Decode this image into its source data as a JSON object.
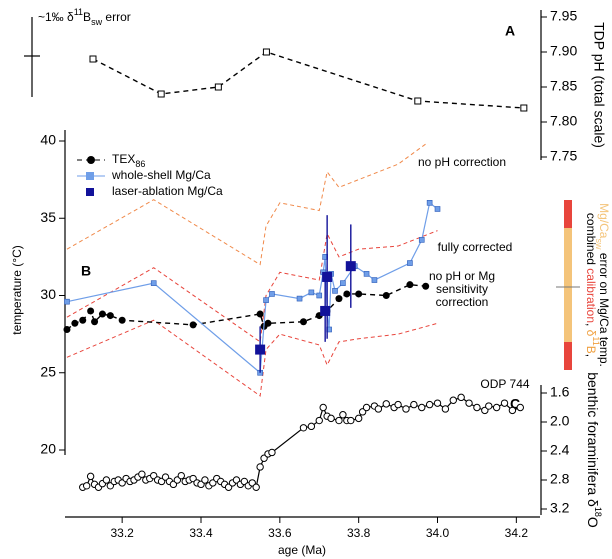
{
  "chart_data": [
    {
      "type": "line",
      "label": "A",
      "ylabel": "TDP pH (total scale)",
      "ylim": [
        7.75,
        7.95
      ],
      "yticks": [
        7.95,
        {
          "value": 7.9,
          "label": "7.90"
        },
        7.85,
        {
          "value": 7.8,
          "label": "7.80"
        },
        7.75
      ],
      "error_note": [
        {
          "text": "~1‰ δ"
        },
        {
          "sup": "11"
        },
        {
          "text": "B"
        },
        {
          "sub": "sw"
        },
        {
          "text": " error"
        }
      ],
      "series": [
        {
          "color": "#000000",
          "marker": "open-square",
          "dashed": true,
          "x": [
            33.126,
            33.299,
            33.444,
            33.566,
            33.95,
            34.219
          ],
          "values": [
            7.89,
            7.84,
            7.85,
            7.9,
            7.83,
            7.82
          ]
        }
      ]
    },
    {
      "type": "line",
      "label": "B",
      "ylabel": "temperature (°C)",
      "ylim": [
        20,
        40
      ],
      "yticks": [
        20,
        25,
        30,
        35,
        40
      ],
      "series": [
        {
          "name": "TEX",
          "name_sub": "86",
          "color": "#000000",
          "marker": "circle",
          "dashed": true,
          "x": [
            33.06,
            33.08,
            33.1,
            33.12,
            33.13,
            33.15,
            33.17,
            33.2,
            33.38,
            33.55,
            33.56,
            33.57,
            33.66,
            33.7,
            33.72,
            33.75,
            33.77,
            33.8,
            33.87,
            33.93,
            33.97
          ],
          "values": [
            27.8,
            28.2,
            28.4,
            29.0,
            28.3,
            28.8,
            28.7,
            28.4,
            28.1,
            28.8,
            28.0,
            28.2,
            28.3,
            28.7,
            29.0,
            29.8,
            30.1,
            30.1,
            30.0,
            30.7,
            30.6
          ]
        },
        {
          "name": "whole-shell Mg/Ca",
          "color": "#6f9ee8",
          "marker": "square",
          "x": [
            33.06,
            33.28,
            33.55,
            33.565,
            33.58,
            33.65,
            33.68,
            33.7,
            33.71,
            33.715,
            33.72,
            33.725,
            33.73,
            33.74,
            33.76,
            33.79,
            33.82,
            33.84,
            33.93,
            33.96,
            33.98,
            34.0
          ],
          "values": [
            29.6,
            30.8,
            25.0,
            29.7,
            30.1,
            29.8,
            30.2,
            30.0,
            31.5,
            32.5,
            29.0,
            27.8,
            31.4,
            30.3,
            30.8,
            31.9,
            31.4,
            31.0,
            32.1,
            33.6,
            36.0,
            35.6
          ]
        },
        {
          "name": "laser-ablation Mg/Ca",
          "color": "#12129a",
          "marker": "big-square",
          "no_line": true,
          "x": [
            33.55,
            33.715,
            33.72,
            33.78
          ],
          "values": [
            26.5,
            29.0,
            31.2,
            31.9
          ],
          "errors": [
            1.5,
            2.0,
            4.0,
            2.7
          ]
        }
      ],
      "envelopes": [
        {
          "color": "#f08a4b",
          "x": [
            33.06,
            33.28,
            33.55,
            33.565,
            33.6,
            33.7,
            33.72,
            33.75,
            33.8,
            33.9,
            33.97
          ],
          "values": [
            33.0,
            36.2,
            32.0,
            34.5,
            36.0,
            35.5,
            38.0,
            37.0,
            37.5,
            38.5,
            39.8
          ]
        },
        {
          "color": "#e8453c",
          "x": [
            33.06,
            33.28,
            33.55,
            33.565,
            33.6,
            33.7,
            33.72,
            33.75,
            33.8,
            33.9,
            34.0
          ],
          "values": [
            28.6,
            31.8,
            27.0,
            30.0,
            31.5,
            31.0,
            34.0,
            32.5,
            33.0,
            33.2,
            34.2
          ]
        },
        {
          "color": "#e8453c",
          "x": [
            33.06,
            33.28,
            33.55,
            33.565,
            33.6,
            33.7,
            33.72,
            33.75,
            33.8,
            33.9,
            34.0
          ],
          "values": [
            26.0,
            28.4,
            23.5,
            26.5,
            27.5,
            26.8,
            25.5,
            27.0,
            27.2,
            27.5,
            28.2
          ]
        }
      ],
      "annotations": [
        {
          "lines": [
            "no pH correction"
          ],
          "color": "#f08a4b"
        },
        {
          "lines": [
            "fully corrected"
          ],
          "color": "#1a1adc"
        },
        {
          "lines": [
            "no pH or Mg",
            "sensitivity",
            "correction"
          ],
          "color": "#e8453c"
        }
      ],
      "band_label": [
        [
          {
            "text": "combined "
          },
          {
            "text": "calibration",
            "color": "#e8453c"
          },
          {
            "text": ", "
          },
          {
            "text": "δ",
            "color": "#f0a040"
          },
          {
            "sup": "11",
            "color": "#f0a040"
          },
          {
            "text": "B",
            "color": "#f0a040"
          },
          {
            "text": ","
          }
        ],
        [
          {
            "text": "Mg/Ca",
            "color": "#f4c47a"
          },
          {
            "sub": "sw",
            "color": "#f4c47a"
          },
          {
            "text": " error on Mg/Ca temp."
          }
        ]
      ]
    },
    {
      "type": "line",
      "label": "C",
      "site": "ODP 744",
      "y_inverted": true,
      "ylabel": [
        {
          "text": "benthic foraminifera δ"
        },
        {
          "sup": "18"
        },
        {
          "text": "O"
        }
      ],
      "ylim": [
        1.6,
        3.2
      ],
      "yticks": [
        1.6,
        {
          "value": 2,
          "label": "2.0"
        },
        2.4,
        2.8,
        3.2
      ],
      "xlabel": "age (Ma)",
      "xlim": [
        33.055,
        34.26
      ],
      "xticks": [
        33.2,
        33.4,
        33.6,
        33.8,
        {
          "value": 34,
          "label": "34.0"
        },
        34.2
      ],
      "series": [
        {
          "color": "#000000",
          "marker": "open-circle",
          "x": [
            33.1,
            33.11,
            33.12,
            33.13,
            33.14,
            33.15,
            33.16,
            33.17,
            33.18,
            33.19,
            33.2,
            33.21,
            33.22,
            33.23,
            33.24,
            33.25,
            33.26,
            33.27,
            33.28,
            33.29,
            33.3,
            33.31,
            33.32,
            33.33,
            33.34,
            33.35,
            33.36,
            33.37,
            33.38,
            33.39,
            33.4,
            33.41,
            33.42,
            33.43,
            33.44,
            33.45,
            33.46,
            33.47,
            33.48,
            33.49,
            33.5,
            33.51,
            33.52,
            33.53,
            33.54,
            33.55,
            33.56,
            33.57,
            33.58,
            33.66,
            33.68,
            33.7,
            33.71,
            33.72,
            33.73,
            33.75,
            33.76,
            33.77,
            33.78,
            33.8,
            33.81,
            33.82,
            33.84,
            33.85,
            33.87,
            33.89,
            33.9,
            33.92,
            33.94,
            33.96,
            33.98,
            34.0,
            34.02,
            34.04,
            34.06,
            34.08,
            34.1,
            34.12,
            34.13,
            34.15,
            34.17,
            34.19,
            34.21
          ],
          "values": [
            2.9,
            2.88,
            2.75,
            2.86,
            2.9,
            2.85,
            2.8,
            2.88,
            2.82,
            2.8,
            2.84,
            2.78,
            2.82,
            2.8,
            2.76,
            2.72,
            2.8,
            2.78,
            2.74,
            2.8,
            2.82,
            2.76,
            2.82,
            2.86,
            2.8,
            2.74,
            2.82,
            2.8,
            2.78,
            2.84,
            2.86,
            2.8,
            2.88,
            2.84,
            2.78,
            2.82,
            2.86,
            2.9,
            2.84,
            2.8,
            2.86,
            2.82,
            2.88,
            2.84,
            2.9,
            2.62,
            2.5,
            2.44,
            2.42,
            2.08,
            2.06,
            1.98,
            1.8,
            1.92,
            1.95,
            1.98,
            1.9,
            1.98,
            1.98,
            1.95,
            1.86,
            1.8,
            1.78,
            1.82,
            1.75,
            1.8,
            1.76,
            1.82,
            1.76,
            1.8,
            1.76,
            1.74,
            1.82,
            1.7,
            1.66,
            1.74,
            1.8,
            1.84,
            1.78,
            1.8,
            1.74,
            1.84,
            1.8
          ]
        }
      ]
    }
  ]
}
